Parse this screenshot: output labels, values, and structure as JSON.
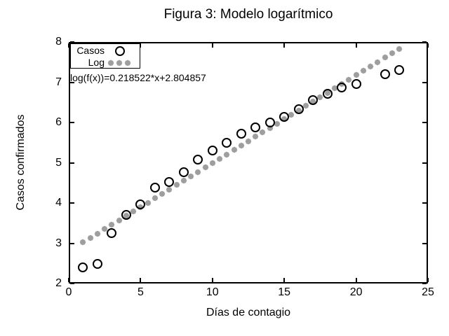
{
  "chart_data": {
    "type": "scatter",
    "title": "Figura 3: Modelo logarítmico",
    "xlabel": "Días de contagio",
    "ylabel": "Casos confirmados",
    "xlim": [
      0,
      25
    ],
    "ylim": [
      2,
      8
    ],
    "x_ticks": [
      0,
      5,
      10,
      15,
      20,
      25
    ],
    "y_ticks": [
      2,
      3,
      4,
      5,
      6,
      7,
      8
    ],
    "grid": false,
    "legend_position": "top-left",
    "annotation": "log(f(x))=0.218522*x+2.804857",
    "colors": {
      "points": "#000000",
      "fit_dots": "#9e9e9e"
    },
    "series": [
      {
        "name": "Casos",
        "type": "scatter",
        "marker": "open-circle",
        "color": "#000000",
        "points": [
          [
            1,
            2.4
          ],
          [
            2,
            2.48
          ],
          [
            3,
            3.26
          ],
          [
            4,
            3.71
          ],
          [
            5,
            3.96
          ],
          [
            6,
            4.38
          ],
          [
            7,
            4.53
          ],
          [
            8,
            4.76
          ],
          [
            9,
            5.08
          ],
          [
            10,
            5.3
          ],
          [
            11,
            5.5
          ],
          [
            12,
            5.73
          ],
          [
            13,
            5.87
          ],
          [
            14,
            6.0
          ],
          [
            15,
            6.14
          ],
          [
            16,
            6.33
          ],
          [
            17,
            6.55
          ],
          [
            18,
            6.71
          ],
          [
            19,
            6.87
          ],
          [
            20,
            6.96
          ],
          [
            22,
            7.2
          ],
          [
            23,
            7.3
          ]
        ]
      },
      {
        "name": "Log",
        "type": "dotted-line",
        "marker": "gray-dot",
        "color": "#9e9e9e",
        "fit": {
          "slope": 0.218522,
          "intercept": 2.804857
        },
        "x_start": 1,
        "x_end": 23,
        "x_step": 0.5
      }
    ]
  }
}
